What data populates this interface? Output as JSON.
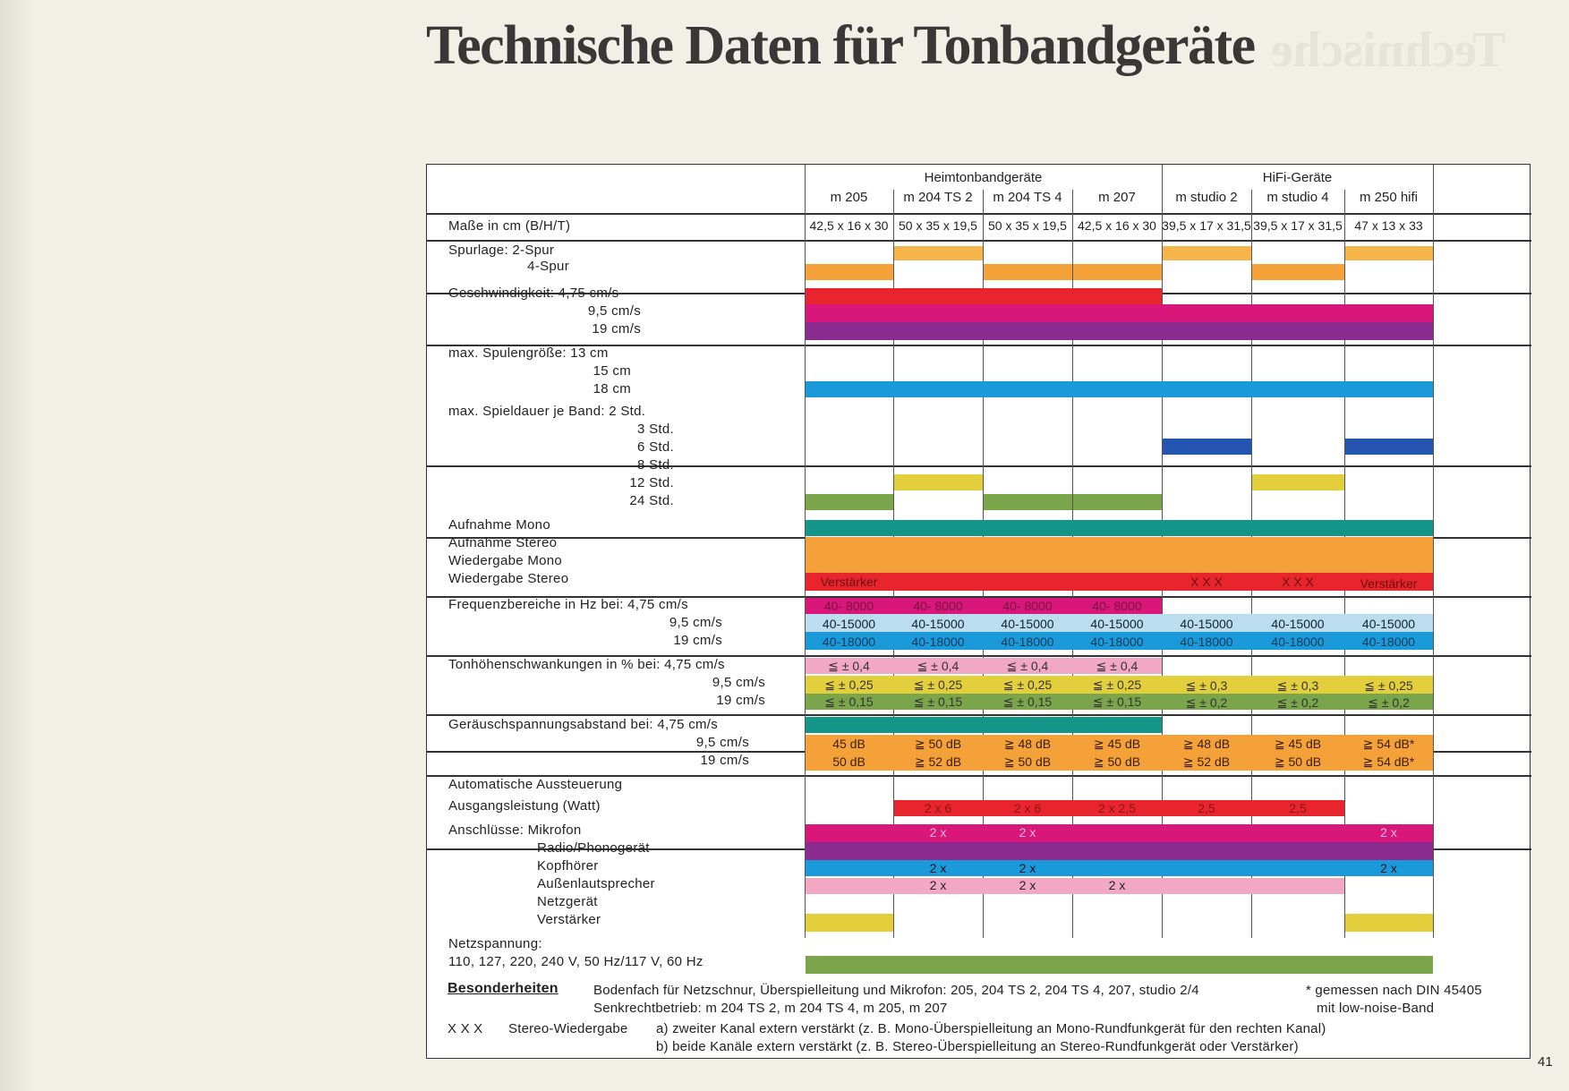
{
  "page": {
    "title": "Technische Daten für Tonbandgeräte",
    "page_number": "41"
  },
  "groups": [
    "Heimtonbandgeräte",
    "HiFi-Geräte"
  ],
  "models": [
    "m 205",
    "m 204 TS 2",
    "m 204 TS 4",
    "m 207",
    "m studio 2",
    "m studio 4",
    "m 250 hifi"
  ],
  "dimensions": {
    "label": "Maße in cm (B/H/T)",
    "values": [
      "42,5 x 16 x 30",
      "50 x 35 x 19,5",
      "50 x 35 x 19,5",
      "42,5 x 16 x 30",
      "39,5 x 17 x 31,5",
      "39,5 x 17 x 31,5",
      "47 x 13 x 33"
    ]
  },
  "labels": {
    "spurlage": [
      "Spurlage: 2-Spur",
      "4-Spur"
    ],
    "geschw": [
      "Geschwindigkeit: 4,75 cm/s",
      "9,5 cm/s",
      "19 cm/s"
    ],
    "spulen": [
      "max. Spulengröße: 13 cm",
      "15 cm",
      "18 cm"
    ],
    "spiel": [
      "max. Spieldauer je Band: 2 Std.",
      "3 Std.",
      "6 Std.",
      "8 Std.",
      "12 Std.",
      "24 Std."
    ],
    "aufnahme": [
      "Aufnahme Mono",
      "Aufnahme Stereo",
      "Wiedergabe Mono",
      "Wiedergabe Stereo"
    ],
    "freq": [
      "Frequenzbereiche in Hz bei: 4,75 cm/s",
      "9,5 cm/s",
      "19 cm/s"
    ],
    "ton": [
      "Tonhöhenschwankungen in % bei: 4,75 cm/s",
      "9,5 cm/s",
      "19 cm/s"
    ],
    "geraeusch": [
      "Geräuschspannungsabstand bei: 4,75 cm/s",
      "9,5 cm/s",
      "19 cm/s"
    ],
    "auto": "Automatische Aussteuerung",
    "ausgang": "Ausgangsleistung (Watt)",
    "anschl": [
      "Anschlüsse: Mikrofon",
      "Radio/Phonogerät",
      "Kopfhörer",
      "Außenlautsprecher",
      "Netzgerät",
      "Verstärker"
    ],
    "netz": [
      "Netzspannung:",
      "110, 127, 220, 240 V, 50 Hz/117 V, 60 Hz"
    ]
  },
  "bar_text": {
    "verstaerker": "Verstärker",
    "xxx": "X X X",
    "freq_475": "40- 8000",
    "freq_95": "40-15000",
    "freq_19": "40-18000",
    "ton_04": "≦ ± 0,4",
    "ton_025": "≦ ± 0,25",
    "ton_015": "≦ ± 0,15",
    "ton_03": "≦ ± 0,3",
    "ton_02": "≦ ± 0,2",
    "gr": [
      [
        "45 dB",
        "50 dB"
      ],
      [
        "≧ 50 dB",
        "≧ 52 dB"
      ],
      [
        "≧ 48 dB",
        "≧ 50 dB"
      ],
      [
        "≧ 45 dB",
        "≧ 50 dB"
      ],
      [
        "≧ 48 dB",
        "≧ 52 dB"
      ],
      [
        "≧ 45 dB",
        "≧ 50 dB"
      ],
      [
        "≧ 54 dB*",
        "≧ 54 dB*"
      ]
    ],
    "watt": [
      "2 x 6",
      "2 x 6",
      "2 x 2,5",
      "2,5",
      "2,5"
    ],
    "zweix": "2 x"
  },
  "colors": {
    "orange": "#f5a13a",
    "lightorange": "#f6b548",
    "red": "#e8242c",
    "magenta": "#d9177b",
    "purple": "#8b2a8f",
    "blue": "#1a9ad8",
    "darkblue": "#2455b0",
    "green": "#7aa54a",
    "yellow": "#e3cf3c",
    "teal": "#13958a",
    "pink": "#f2a8c4",
    "lightblue": "#bcdcef"
  },
  "footer": {
    "heading": "Besonderheiten",
    "line1": "Bodenfach für Netzschnur, Überspielleitung und Mikrofon: 205, 204 TS 2, 204 TS 4, 207, studio 2/4",
    "line2": "Senkrechtbetrieb: m 204 TS 2, m 204 TS 4, m 205, m 207",
    "note1": "* gemessen nach DIN 45405",
    "note2": "mit low-noise-Band",
    "xxx": "X X X",
    "stereo": "Stereo-Wiedergabe",
    "a": "a) zweiter Kanal extern verstärkt (z. B. Mono-Überspielleitung an Mono-Rundfunkgerät für den rechten Kanal)",
    "b": "b) beide Kanäle extern verstärkt (z. B. Stereo-Überspielleitung an Stereo-Rundfunkgerät oder Verstärker)"
  }
}
